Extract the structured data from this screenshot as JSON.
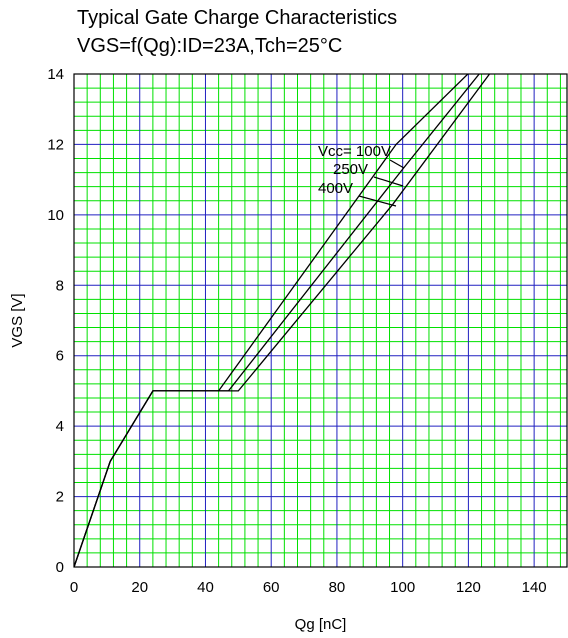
{
  "title_line1": "Typical Gate Charge Characteristics",
  "title_line2": "VGS=f(Qg):ID=23A,Tch=25°C",
  "colors": {
    "minor_grid": "#00e000",
    "major_grid": "#2020c0",
    "curve": "#000000"
  },
  "chart_data": {
    "type": "line",
    "title": "Typical Gate Charge Characteristics",
    "subtitle": "VGS=f(Qg):ID=23A,Tch=25°C",
    "xlabel": "Qg [nC]",
    "ylabel": "VGS [V]",
    "xlim": [
      0,
      150
    ],
    "ylim": [
      0,
      14
    ],
    "xticks": [
      0,
      20,
      40,
      60,
      80,
      100,
      120,
      140
    ],
    "yticks": [
      0,
      2,
      4,
      6,
      8,
      10,
      12,
      14
    ],
    "grid": true,
    "series": [
      {
        "name": "Vcc= 100V",
        "x": [
          0,
          11,
          24,
          44,
          98,
          122
        ],
        "y": [
          0,
          3,
          5,
          5,
          12,
          14.2
        ]
      },
      {
        "name": "250V",
        "x": [
          0,
          11,
          24,
          47,
          100,
          125
        ],
        "y": [
          0,
          3,
          5,
          5,
          11.3,
          14.2
        ]
      },
      {
        "name": "400V",
        "x": [
          0,
          11,
          24,
          50,
          97,
          128
        ],
        "y": [
          0,
          3,
          5,
          5,
          10.3,
          14.2
        ]
      }
    ]
  }
}
